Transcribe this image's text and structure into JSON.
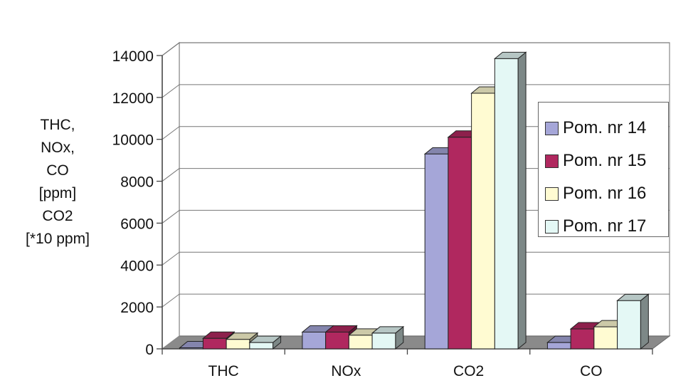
{
  "chart_data": {
    "type": "bar",
    "categories": [
      "THC",
      "NOx",
      "CO2",
      "CO"
    ],
    "series": [
      {
        "name": "Pom. nr 14",
        "values": [
          50,
          800,
          9300,
          300
        ],
        "color": "#a5a6d8"
      },
      {
        "name": "Pom. nr 15",
        "values": [
          500,
          800,
          10100,
          950
        ],
        "color": "#b0285f"
      },
      {
        "name": "Pom. nr 16",
        "values": [
          450,
          650,
          12200,
          1050
        ],
        "color": "#fffbd2"
      },
      {
        "name": "Pom. nr 17",
        "values": [
          300,
          750,
          13850,
          2300
        ],
        "color": "#e4f8f5"
      }
    ],
    "ylabel_lines": [
      "THC,",
      "NOx,",
      "CO",
      "[ppm]",
      "CO2",
      "[*10 ppm]"
    ],
    "ylim": [
      0,
      14000
    ],
    "yticks": [
      "0",
      "2000",
      "4000",
      "6000",
      "8000",
      "10000",
      "12000",
      "14000"
    ],
    "grid": true,
    "legend_position": "right"
  }
}
